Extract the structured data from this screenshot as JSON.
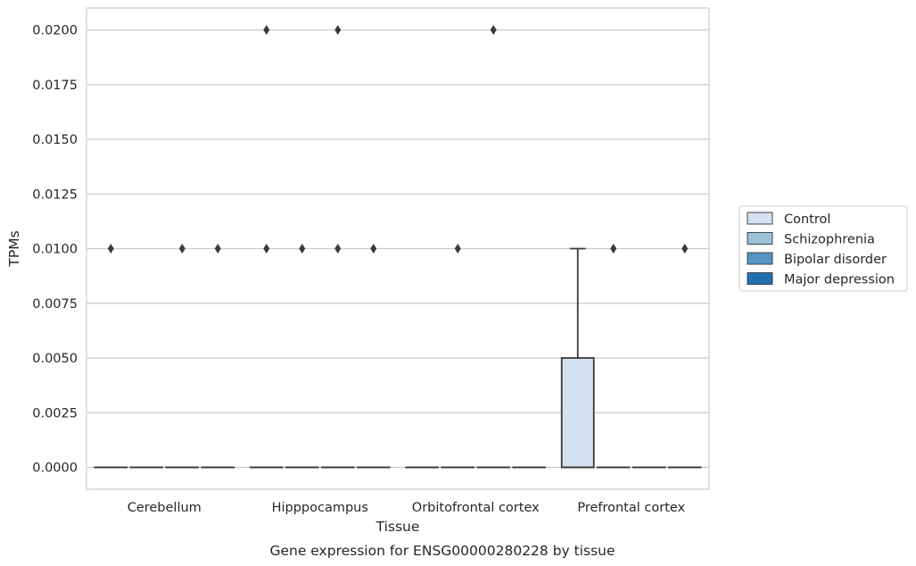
{
  "chart_data": {
    "type": "box",
    "caption": "Gene expression for ENSG00000280228 by tissue",
    "xlabel": "Tissue",
    "ylabel": "TPMs",
    "ylim": [
      -0.001,
      0.021
    ],
    "yticks": [
      0.0,
      0.0025,
      0.005,
      0.0075,
      0.01,
      0.0125,
      0.015,
      0.0175,
      0.02
    ],
    "ytick_labels": [
      "0.0000",
      "0.0025",
      "0.0050",
      "0.0075",
      "0.0100",
      "0.0125",
      "0.0150",
      "0.0175",
      "0.0200"
    ],
    "grid": "horizontal",
    "legend_position": "right",
    "categories": [
      "Cerebellum",
      "Hipppocampus",
      "Orbitofrontal cortex",
      "Prefrontal cortex"
    ],
    "series": [
      {
        "name": "Control",
        "color": "#d3e2f1",
        "boxes": [
          {
            "q1": 0,
            "median": 0,
            "q3": 0,
            "whisker_low": 0,
            "whisker_high": 0,
            "outliers": [
              0.01
            ]
          },
          {
            "q1": 0,
            "median": 0,
            "q3": 0,
            "whisker_low": 0,
            "whisker_high": 0,
            "outliers": [
              0.02,
              0.01
            ]
          },
          {
            "q1": 0,
            "median": 0,
            "q3": 0,
            "whisker_low": 0,
            "whisker_high": 0,
            "outliers": []
          },
          {
            "q1": 0,
            "median": 0,
            "q3": 0.005,
            "whisker_low": 0,
            "whisker_high": 0.01,
            "outliers": []
          }
        ]
      },
      {
        "name": "Schizophrenia",
        "color": "#9ac2db",
        "boxes": [
          {
            "q1": 0,
            "median": 0,
            "q3": 0,
            "whisker_low": 0,
            "whisker_high": 0,
            "outliers": []
          },
          {
            "q1": 0,
            "median": 0,
            "q3": 0,
            "whisker_low": 0,
            "whisker_high": 0,
            "outliers": [
              0.01
            ]
          },
          {
            "q1": 0,
            "median": 0,
            "q3": 0,
            "whisker_low": 0,
            "whisker_high": 0,
            "outliers": [
              0.01
            ]
          },
          {
            "q1": 0,
            "median": 0,
            "q3": 0,
            "whisker_low": 0,
            "whisker_high": 0,
            "outliers": [
              0.01
            ]
          }
        ]
      },
      {
        "name": "Bipolar disorder",
        "color": "#5495c6",
        "boxes": [
          {
            "q1": 0,
            "median": 0,
            "q3": 0,
            "whisker_low": 0,
            "whisker_high": 0,
            "outliers": [
              0.01
            ]
          },
          {
            "q1": 0,
            "median": 0,
            "q3": 0,
            "whisker_low": 0,
            "whisker_high": 0,
            "outliers": [
              0.02,
              0.01
            ]
          },
          {
            "q1": 0,
            "median": 0,
            "q3": 0,
            "whisker_low": 0,
            "whisker_high": 0,
            "outliers": [
              0.02
            ]
          },
          {
            "q1": 0,
            "median": 0,
            "q3": 0,
            "whisker_low": 0,
            "whisker_high": 0,
            "outliers": []
          }
        ]
      },
      {
        "name": "Major depression",
        "color": "#2170b4",
        "boxes": [
          {
            "q1": 0,
            "median": 0,
            "q3": 0,
            "whisker_low": 0,
            "whisker_high": 0,
            "outliers": [
              0.01
            ]
          },
          {
            "q1": 0,
            "median": 0,
            "q3": 0,
            "whisker_low": 0,
            "whisker_high": 0,
            "outliers": [
              0.01
            ]
          },
          {
            "q1": 0,
            "median": 0,
            "q3": 0,
            "whisker_low": 0,
            "whisker_high": 0,
            "outliers": []
          },
          {
            "q1": 0,
            "median": 0,
            "q3": 0,
            "whisker_low": 0,
            "whisker_high": 0,
            "outliers": [
              0.01
            ]
          }
        ]
      }
    ]
  }
}
